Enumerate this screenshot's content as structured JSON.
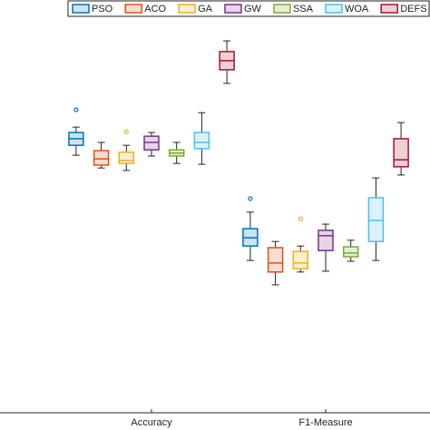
{
  "chart_data": {
    "type": "box",
    "categories": [
      "Accuracy",
      "F1-Measure"
    ],
    "ylim": [
      0,
      100
    ],
    "legend": "top-right",
    "series": [
      {
        "name": "PSO",
        "color": "#0072BD",
        "boxes": [
          {
            "min": 62.4,
            "q1": 64.8,
            "median": 66.4,
            "q3": 67.9,
            "max": 69.2,
            "outliers": [
              73.4
            ]
          },
          {
            "min": 36.9,
            "q1": 40.4,
            "median": 42.4,
            "q3": 44.6,
            "max": 48.6,
            "outliers": [
              51.9
            ]
          }
        ]
      },
      {
        "name": "ACO",
        "color": "#D95319",
        "boxes": [
          {
            "min": 59.3,
            "q1": 60.0,
            "median": 61.5,
            "q3": 63.5,
            "max": 65.5
          },
          {
            "min": 31.0,
            "q1": 34.1,
            "median": 36.3,
            "q3": 40.0,
            "max": 41.5
          }
        ]
      },
      {
        "name": "GA",
        "color": "#EDB120",
        "boxes": [
          {
            "min": 58.7,
            "q1": 60.4,
            "median": 61.1,
            "q3": 63.1,
            "max": 64.8,
            "outliers": [
              68.1
            ]
          },
          {
            "min": 34.1,
            "q1": 34.9,
            "median": 36.3,
            "q3": 39.1,
            "max": 40.4,
            "outliers": [
              47.0
            ]
          }
        ]
      },
      {
        "name": "GW",
        "color": "#7E2F8E",
        "boxes": [
          {
            "min": 62.2,
            "q1": 63.7,
            "median": 65.5,
            "q3": 67.0,
            "max": 67.9
          },
          {
            "min": 34.3,
            "q1": 39.3,
            "median": 42.9,
            "q3": 44.2,
            "max": 45.7
          }
        ]
      },
      {
        "name": "SSA",
        "color": "#77AC30",
        "boxes": [
          {
            "min": 60.4,
            "q1": 62.2,
            "median": 62.9,
            "q3": 63.7,
            "max": 65.5
          },
          {
            "min": 36.7,
            "q1": 37.8,
            "median": 38.7,
            "q3": 40.2,
            "max": 41.8
          }
        ]
      },
      {
        "name": "WOA",
        "color": "#4DBEEE",
        "boxes": [
          {
            "min": 60.2,
            "q1": 64.0,
            "median": 65.5,
            "q3": 67.9,
            "max": 72.7
          },
          {
            "min": 36.9,
            "q1": 41.5,
            "median": 46.6,
            "q3": 52.1,
            "max": 56.9
          }
        ]
      },
      {
        "name": "DEFS",
        "color": "#A2142F",
        "boxes": [
          {
            "min": 79.8,
            "q1": 83.1,
            "median": 85.3,
            "q3": 87.5,
            "max": 90.1
          },
          {
            "min": 57.6,
            "q1": 59.6,
            "median": 61.3,
            "q3": 66.4,
            "max": 70.3
          }
        ]
      }
    ]
  }
}
